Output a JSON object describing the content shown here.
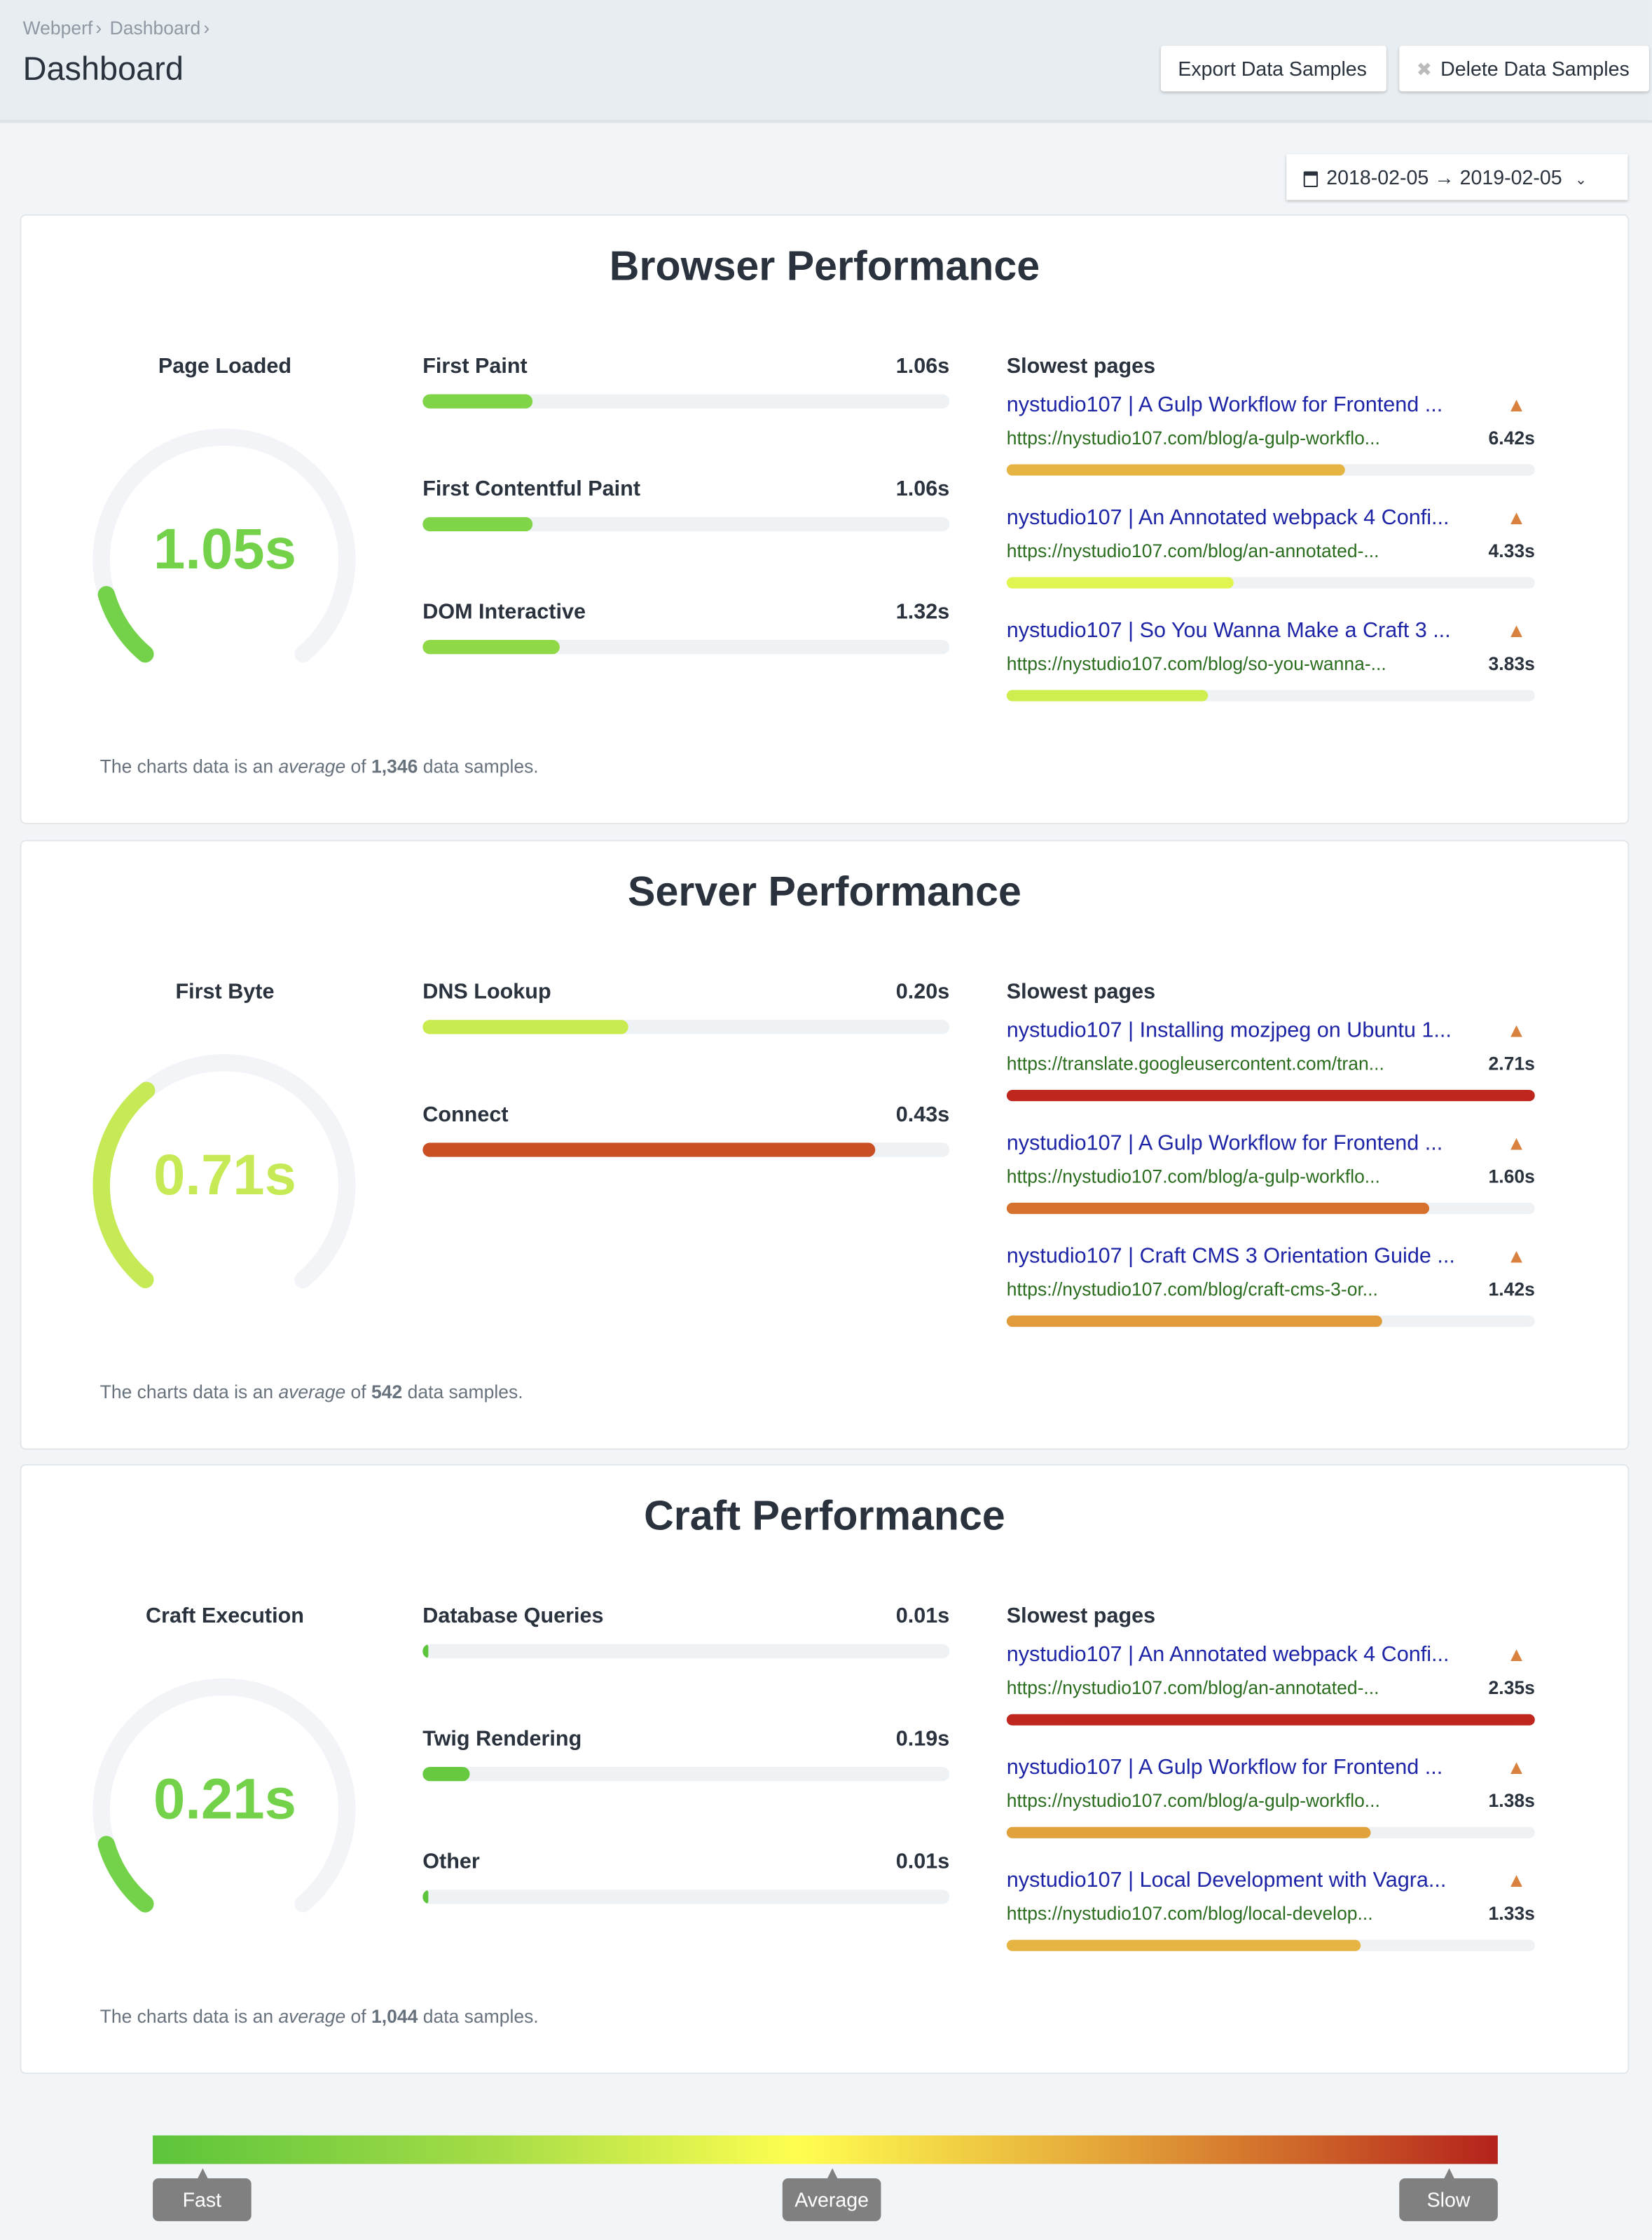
{
  "breadcrumb": [
    "Webperf",
    "Dashboard"
  ],
  "page_title": "Dashboard",
  "toolbar": {
    "export_label": "Export Data Samples",
    "delete_label": "Delete Data Samples"
  },
  "date_range": "2018-02-05 → 2019-02-05",
  "slowest_label": "Slowest pages",
  "footer": {
    "prefix": "The charts data is an ",
    "average": "average",
    "of": " of ",
    "suffix": " data samples."
  },
  "sections": [
    {
      "title": "Browser Performance",
      "gauge": {
        "label": "Page Loaded",
        "value": "1.05s",
        "fraction": 0.12,
        "color": "#74d24a"
      },
      "metrics": [
        {
          "label": "First Paint",
          "value": "1.06s",
          "fraction": 0.21,
          "color": "#7fd447"
        },
        {
          "label": "First Contentful Paint",
          "value": "1.06s",
          "fraction": 0.21,
          "color": "#7fd447"
        },
        {
          "label": "DOM Interactive",
          "value": "1.32s",
          "fraction": 0.26,
          "color": "#8fd846"
        }
      ],
      "pages": [
        {
          "title": "nystudio107 | A Gulp Workflow for Frontend ...",
          "url": "https://nystudio107.com/blog/a-gulp-workflo...",
          "time": "6.42s",
          "fraction": 0.64,
          "color": "#e6b443"
        },
        {
          "title": "nystudio107 | An Annotated webpack 4 Confi...",
          "url": "https://nystudio107.com/blog/an-annotated-...",
          "time": "4.33s",
          "fraction": 0.43,
          "color": "#e0f550"
        },
        {
          "title": "nystudio107 | So You Wanna Make a Craft 3 ...",
          "url": "https://nystudio107.com/blog/so-you-wanna-...",
          "time": "3.83s",
          "fraction": 0.38,
          "color": "#cdee4e"
        }
      ],
      "samples": "1,346"
    },
    {
      "title": "Server Performance",
      "gauge": {
        "label": "First Byte",
        "value": "0.71s",
        "fraction": 0.36,
        "color": "#c5ea55"
      },
      "metrics": [
        {
          "label": "DNS Lookup",
          "value": "0.20s",
          "fraction": 0.39,
          "color": "#c8ec50"
        },
        {
          "label": "Connect",
          "value": "0.43s",
          "fraction": 0.86,
          "color": "#c94f24"
        }
      ],
      "pages": [
        {
          "title": "nystudio107 | Installing mozjpeg on Ubuntu 1...",
          "url": "https://translate.googleusercontent.com/tran...",
          "time": "2.71s",
          "fraction": 1.0,
          "color": "#be261e"
        },
        {
          "title": "nystudio107 | A Gulp Workflow for Frontend ...",
          "url": "https://nystudio107.com/blog/a-gulp-workflo...",
          "time": "1.60s",
          "fraction": 0.8,
          "color": "#d5702d"
        },
        {
          "title": "nystudio107 | Craft CMS 3 Orientation Guide ...",
          "url": "https://nystudio107.com/blog/craft-cms-3-or...",
          "time": "1.42s",
          "fraction": 0.71,
          "color": "#e19b3a"
        }
      ],
      "samples": "542"
    },
    {
      "title": "Craft Performance",
      "gauge": {
        "label": "Craft Execution",
        "value": "0.21s",
        "fraction": 0.12,
        "color": "#74d24a"
      },
      "metrics": [
        {
          "label": "Database Queries",
          "value": "0.01s",
          "fraction": 0.01,
          "color": "#5cc43b"
        },
        {
          "label": "Twig Rendering",
          "value": "0.19s",
          "fraction": 0.09,
          "color": "#66c940"
        },
        {
          "label": "Other",
          "value": "0.01s",
          "fraction": 0.01,
          "color": "#5cc43b"
        }
      ],
      "pages": [
        {
          "title": "nystudio107 | An Annotated webpack 4 Confi...",
          "url": "https://nystudio107.com/blog/an-annotated-...",
          "time": "2.35s",
          "fraction": 1.0,
          "color": "#be261e"
        },
        {
          "title": "nystudio107 | A Gulp Workflow for Frontend ...",
          "url": "https://nystudio107.com/blog/a-gulp-workflo...",
          "time": "1.38s",
          "fraction": 0.69,
          "color": "#e1a13b"
        },
        {
          "title": "nystudio107 | Local Development with Vagra...",
          "url": "https://nystudio107.com/blog/local-develop...",
          "time": "1.33s",
          "fraction": 0.67,
          "color": "#e6b443"
        }
      ],
      "samples": "1,044"
    }
  ],
  "legend": {
    "fast": "Fast",
    "average": "Average",
    "slow": "Slow"
  }
}
